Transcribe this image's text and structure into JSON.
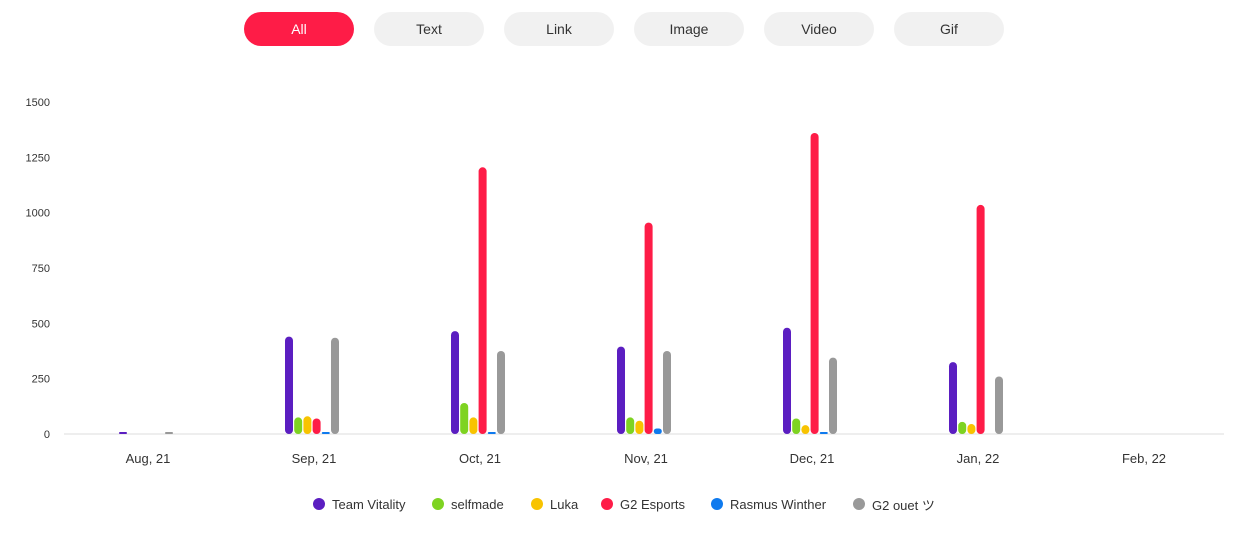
{
  "filters": [
    {
      "label": "All",
      "active": true
    },
    {
      "label": "Text",
      "active": false
    },
    {
      "label": "Link",
      "active": false
    },
    {
      "label": "Image",
      "active": false
    },
    {
      "label": "Video",
      "active": false
    },
    {
      "label": "Gif",
      "active": false
    }
  ],
  "chart_data": {
    "type": "bar",
    "categories": [
      "Aug, 21",
      "Sep, 21",
      "Oct, 21",
      "Nov, 21",
      "Dec, 21",
      "Jan, 22",
      "Feb, 22"
    ],
    "y_ticks": [
      "0",
      "250",
      "500",
      "750",
      "1000",
      "1250",
      "1500"
    ],
    "ylim": [
      0,
      1500
    ],
    "grid": false,
    "legend_position": "bottom-center",
    "series": [
      {
        "name": "Team Vitality",
        "color": "#5b1ec1",
        "values": [
          3,
          440,
          465,
          395,
          480,
          325,
          null
        ]
      },
      {
        "name": "selfmade",
        "color": "#7ed321",
        "values": [
          0,
          75,
          140,
          75,
          70,
          55,
          null
        ]
      },
      {
        "name": "Luka",
        "color": "#f8c300",
        "values": [
          0,
          80,
          75,
          60,
          40,
          45,
          null
        ]
      },
      {
        "name": "G2 Esports",
        "color": "#fe1c47",
        "values": [
          0,
          70,
          1205,
          955,
          1360,
          1035,
          null
        ]
      },
      {
        "name": "Rasmus Winther",
        "color": "#0f7aee",
        "values": [
          0,
          2,
          3,
          25,
          3,
          0,
          null
        ]
      },
      {
        "name": "G2 ouet ツ",
        "color": "#999999",
        "values": [
          3,
          435,
          375,
          375,
          345,
          260,
          null
        ]
      }
    ]
  }
}
